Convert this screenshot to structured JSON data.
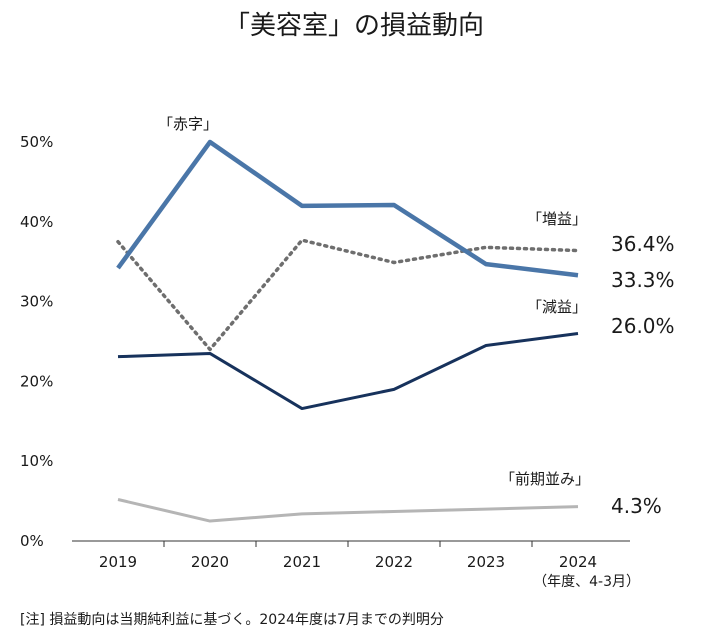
{
  "chart_data": {
    "type": "line",
    "title": "「美容室」の損益動向",
    "categories": [
      "2019",
      "2020",
      "2021",
      "2022",
      "2023",
      "2024"
    ],
    "x_unit_note": "（年度、4-3月）",
    "ylim": [
      0,
      50
    ],
    "yticks": [
      0,
      10,
      20,
      30,
      40,
      50
    ],
    "ytick_labels": [
      "0%",
      "10%",
      "20%",
      "30%",
      "40%",
      "50%"
    ],
    "grid": false,
    "series": [
      {
        "name": "「赤字」",
        "values": [
          34.2,
          50.0,
          42.0,
          42.1,
          34.7,
          33.3
        ],
        "end_label": "33.3%",
        "color": "#4a76a8",
        "style": "solid-thick"
      },
      {
        "name": "「増益」",
        "values": [
          37.5,
          24.0,
          37.7,
          34.9,
          36.8,
          36.4
        ],
        "end_label": "36.4%",
        "color": "#6e6e6e",
        "style": "dotted"
      },
      {
        "name": "「減益」",
        "values": [
          23.1,
          23.5,
          16.6,
          19.0,
          24.5,
          26.0
        ],
        "end_label": "26.0%",
        "color": "#17325c",
        "style": "solid"
      },
      {
        "name": "「前期並み」",
        "values": [
          5.2,
          2.5,
          3.4,
          3.7,
          4.0,
          4.3
        ],
        "end_label": "4.3%",
        "color": "#b5b5b5",
        "style": "solid"
      }
    ],
    "note": "[注]  損益動向は当期純利益に基づく。2024年度は7月までの判明分"
  }
}
